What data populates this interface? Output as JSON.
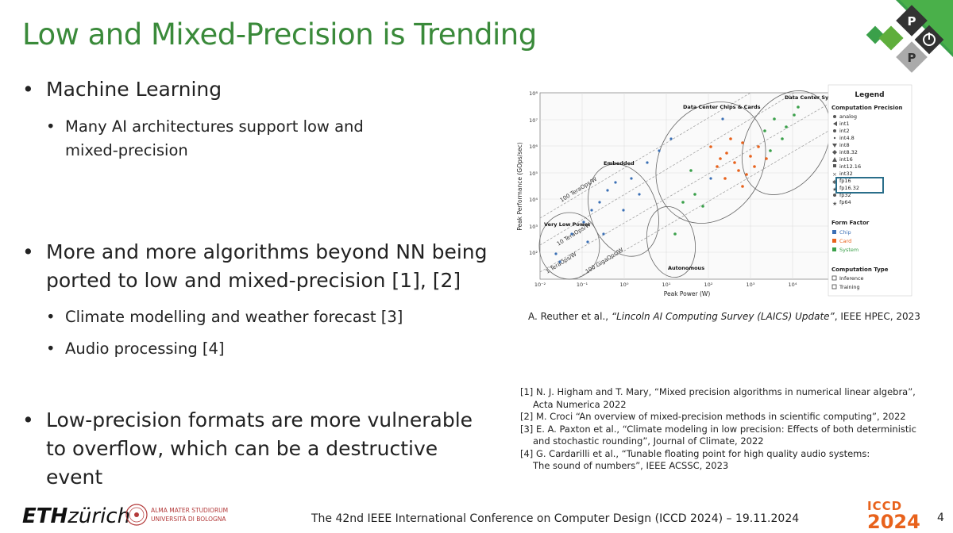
{
  "slide": {
    "title": "Low and Mixed-Precision is Trending",
    "page_number": "4",
    "bullet_glyph": "•",
    "colors": {
      "title_green": "#3a8a3a",
      "iccd_orange": "#e8621c",
      "highlight_teal": "#2a6e8a"
    }
  },
  "bullets": [
    {
      "text": "Machine Learning",
      "sub": [
        {
          "lines": [
            "Many AI architectures support low and",
            "mixed-precision"
          ]
        }
      ]
    },
    {
      "lines": [
        "More and more algorithms beyond NN being",
        "ported to low and mixed-precision [1], [2]"
      ],
      "sub": [
        {
          "lines": [
            "Climate modelling and weather forecast [3]"
          ]
        },
        {
          "lines": [
            "Audio processing [4]"
          ]
        }
      ]
    },
    {
      "lines": [
        "Low-precision formats are more vulnerable",
        "to overflow, which can be a destructive",
        "event"
      ]
    }
  ],
  "figure": {
    "caption_prefix": "A. Reuther et al., ",
    "caption_title": "“Lincoln AI Computing Survey (LAICS) Update”",
    "caption_suffix": ", IEEE HPEC, 2023",
    "xlabel": "Peak Power (W)",
    "ylabel": "Peak Performance (GOps/sec)",
    "x_ticks": [
      "10⁻²",
      "10⁻¹",
      "10⁰",
      "10¹",
      "10²",
      "10³",
      "10⁴"
    ],
    "y_ticks": [
      "10⁸",
      "10⁷",
      "10⁶",
      "10⁵",
      "10⁴",
      "10³",
      "10²"
    ],
    "region_labels": [
      "Data Center Systems",
      "Data Center Chips & Cards",
      "Embedded",
      "Very Low Power",
      "Autonomous"
    ],
    "efficiency_lines": [
      "100 TeraOps/W",
      "10 TeraOps/W",
      "1 TeraOps/W",
      "100 GigaOps/W"
    ],
    "legend_title": "Legend",
    "legend_precision_title": "Computation Precision",
    "legend_precision": [
      "analog",
      "int1",
      "int2",
      "int4.8",
      "int8",
      "int8.32",
      "int16",
      "int12.16",
      "int32",
      "fp16",
      "fp16.32",
      "fp32",
      "fp64"
    ],
    "legend_form_title": "Form Factor",
    "legend_form": [
      {
        "label": "Chip",
        "color": "#3a6fb5"
      },
      {
        "label": "Card",
        "color": "#e8621c"
      },
      {
        "label": "System",
        "color": "#3aa04a"
      }
    ],
    "legend_type_title": "Computation Type",
    "legend_type": [
      "Inference",
      "Training"
    ]
  },
  "references": [
    {
      "lines": [
        "[1] N. J. Higham and T. Mary, “Mixed precision algorithms in numerical linear algebra”,",
        "Acta Numerica 2022"
      ]
    },
    {
      "lines": [
        "[2] M. Croci “An overview of mixed-precision methods in scientific computing”, 2022"
      ]
    },
    {
      "lines": [
        "[3] E. A. Paxton et al., “Climate modeling in low precision: Effects of both deterministic",
        "and stochastic rounding”, Journal of Climate, 2022"
      ]
    },
    {
      "lines": [
        "[4] G. Cardarilli et al., “Tunable floating point for high quality audio systems:",
        "The sound of numbers”, IEEE ACSSC, 2023"
      ]
    }
  ],
  "footer": {
    "eth_bold": "ETH",
    "eth_rest": "zürich",
    "unibo_line1": "ALMA MATER STUDIORUM",
    "unibo_line2": "UNIVERSITÀ DI BOLOGNA",
    "conference": "The 42nd IEEE International Conference on Computer Design (ICCD 2024) – 19.11.2024",
    "iccd_top": "ICCD",
    "iccd_year": "2024"
  },
  "corner_logo": {
    "letter_top": "P",
    "letter_bottom": "P"
  }
}
